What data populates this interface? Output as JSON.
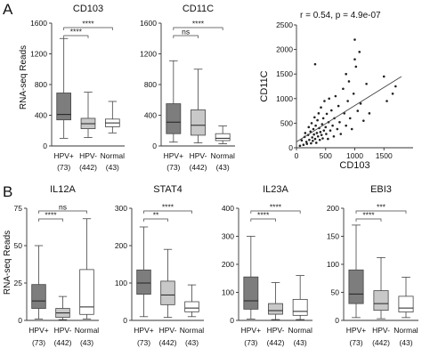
{
  "figure": {
    "panel_labels": [
      "A",
      "B"
    ],
    "ylabel": "RNA-seq Reads",
    "groups": [
      {
        "label": "HPV+",
        "n": "(73)",
        "fill": "#7d7d7d"
      },
      {
        "label": "HPV-",
        "n": "(442)",
        "fill": "#c8c8c8"
      },
      {
        "label": "Normal",
        "n": "(43)",
        "fill": "#ffffff"
      }
    ]
  },
  "chart_data": [
    {
      "id": "cd103",
      "type": "box",
      "title": "CD103",
      "ylim": [
        0,
        1600
      ],
      "yticks": [
        0,
        400,
        800,
        1200,
        1600
      ],
      "boxes": [
        {
          "min": 100,
          "q1": 340,
          "median": 410,
          "q3": 690,
          "max": 1400
        },
        {
          "min": 110,
          "q1": 225,
          "median": 290,
          "q3": 360,
          "max": 700
        },
        {
          "min": 170,
          "q1": 250,
          "median": 300,
          "q3": 350,
          "max": 580
        }
      ],
      "comparisons": [
        {
          "from": 0,
          "to": 1,
          "label": "****"
        },
        {
          "from": 0,
          "to": 2,
          "label": "****"
        }
      ]
    },
    {
      "id": "cd11c",
      "type": "box",
      "title": "CD11C",
      "ylim": [
        0,
        1600
      ],
      "yticks": [
        0,
        400,
        800,
        1200,
        1600
      ],
      "boxes": [
        {
          "min": 50,
          "q1": 160,
          "median": 310,
          "q3": 550,
          "max": 1110
        },
        {
          "min": 40,
          "q1": 140,
          "median": 270,
          "q3": 470,
          "max": 1000
        },
        {
          "min": 30,
          "q1": 70,
          "median": 100,
          "q3": 160,
          "max": 260
        }
      ],
      "comparisons": [
        {
          "from": 0,
          "to": 1,
          "label": "ns"
        },
        {
          "from": 0,
          "to": 2,
          "label": "****"
        }
      ]
    },
    {
      "id": "scatter",
      "type": "scatter",
      "annotation": "r = 0.54, p = 4.9e-07",
      "xlabel": "CD103",
      "ylabel": "CD11C",
      "xlim": [
        0,
        2000
      ],
      "ylim": [
        0,
        2500
      ],
      "xticks": [
        0,
        500,
        1000,
        1500
      ],
      "yticks": [
        0,
        500,
        1000,
        1500,
        2000,
        2500
      ],
      "trend": {
        "x": [
          0,
          1800
        ],
        "y": [
          120,
          1450
        ]
      },
      "points": [
        [
          60,
          40
        ],
        [
          90,
          150
        ],
        [
          120,
          60
        ],
        [
          140,
          220
        ],
        [
          150,
          300
        ],
        [
          170,
          120
        ],
        [
          180,
          80
        ],
        [
          200,
          260
        ],
        [
          210,
          420
        ],
        [
          220,
          160
        ],
        [
          240,
          330
        ],
        [
          250,
          90
        ],
        [
          260,
          500
        ],
        [
          270,
          210
        ],
        [
          280,
          140
        ],
        [
          290,
          380
        ],
        [
          300,
          270
        ],
        [
          310,
          620
        ],
        [
          320,
          180
        ],
        [
          330,
          450
        ],
        [
          340,
          100
        ],
        [
          350,
          300
        ],
        [
          360,
          560
        ],
        [
          370,
          230
        ],
        [
          380,
          700
        ],
        [
          390,
          400
        ],
        [
          400,
          160
        ],
        [
          410,
          320
        ],
        [
          420,
          820
        ],
        [
          430,
          260
        ],
        [
          440,
          480
        ],
        [
          450,
          190
        ],
        [
          460,
          600
        ],
        [
          470,
          350
        ],
        [
          480,
          950
        ],
        [
          500,
          420
        ],
        [
          510,
          280
        ],
        [
          520,
          690
        ],
        [
          540,
          180
        ],
        [
          550,
          520
        ],
        [
          560,
          1000
        ],
        [
          580,
          350
        ],
        [
          600,
          760
        ],
        [
          620,
          450
        ],
        [
          640,
          230
        ],
        [
          650,
          600
        ],
        [
          670,
          1050
        ],
        [
          700,
          380
        ],
        [
          720,
          850
        ],
        [
          740,
          520
        ],
        [
          760,
          280
        ],
        [
          800,
          1200
        ],
        [
          820,
          700
        ],
        [
          850,
          450
        ],
        [
          880,
          950
        ],
        [
          900,
          1350
        ],
        [
          920,
          600
        ],
        [
          950,
          380
        ],
        [
          980,
          1100
        ],
        [
          1000,
          2200
        ],
        [
          1020,
          1650
        ],
        [
          1050,
          750
        ],
        [
          1080,
          1950
        ],
        [
          1100,
          900
        ],
        [
          1150,
          550
        ],
        [
          1200,
          1300
        ],
        [
          1250,
          700
        ],
        [
          1500,
          1450
        ],
        [
          1550,
          950
        ],
        [
          1650,
          1100
        ],
        [
          1700,
          1250
        ],
        [
          1000,
          1800
        ],
        [
          850,
          1500
        ],
        [
          320,
          1700
        ]
      ]
    },
    {
      "id": "il12a",
      "type": "box",
      "title": "IL12A",
      "ylim": [
        0,
        75
      ],
      "yticks": [
        0,
        25,
        50,
        75
      ],
      "boxes": [
        {
          "min": 1,
          "q1": 8,
          "median": 13,
          "q3": 24,
          "max": 50
        },
        {
          "min": 0.5,
          "q1": 2,
          "median": 5,
          "q3": 8,
          "max": 16
        },
        {
          "min": 1,
          "q1": 4,
          "median": 9,
          "q3": 34,
          "max": 68
        }
      ],
      "comparisons": [
        {
          "from": 0,
          "to": 1,
          "label": "****"
        },
        {
          "from": 0,
          "to": 2,
          "label": "ns"
        }
      ]
    },
    {
      "id": "stat4",
      "type": "box",
      "title": "STAT4",
      "ylim": [
        0,
        300
      ],
      "yticks": [
        0,
        100,
        200,
        300
      ],
      "boxes": [
        {
          "min": 10,
          "q1": 70,
          "median": 100,
          "q3": 135,
          "max": 250
        },
        {
          "min": 8,
          "q1": 42,
          "median": 68,
          "q3": 105,
          "max": 190
        },
        {
          "min": 10,
          "q1": 23,
          "median": 33,
          "q3": 50,
          "max": 95
        }
      ],
      "comparisons": [
        {
          "from": 0,
          "to": 1,
          "label": "**"
        },
        {
          "from": 0,
          "to": 2,
          "label": "****"
        }
      ]
    },
    {
      "id": "il23a",
      "type": "box",
      "title": "IL23A",
      "ylim": [
        0,
        400
      ],
      "yticks": [
        0,
        100,
        200,
        300,
        400
      ],
      "boxes": [
        {
          "min": 5,
          "q1": 40,
          "median": 70,
          "q3": 155,
          "max": 300
        },
        {
          "min": 3,
          "q1": 22,
          "median": 35,
          "q3": 60,
          "max": 135
        },
        {
          "min": 3,
          "q1": 18,
          "median": 32,
          "q3": 75,
          "max": 160
        }
      ],
      "comparisons": [
        {
          "from": 0,
          "to": 1,
          "label": "****"
        },
        {
          "from": 0,
          "to": 2,
          "label": "****"
        }
      ]
    },
    {
      "id": "ebi3",
      "type": "box",
      "title": "EBI3",
      "ylim": [
        0,
        200
      ],
      "yticks": [
        0,
        50,
        100,
        150,
        200
      ],
      "boxes": [
        {
          "min": 5,
          "q1": 30,
          "median": 47,
          "q3": 90,
          "max": 170
        },
        {
          "min": 3,
          "q1": 18,
          "median": 30,
          "q3": 53,
          "max": 112
        },
        {
          "min": 5,
          "q1": 15,
          "median": 22,
          "q3": 43,
          "max": 77
        }
      ],
      "comparisons": [
        {
          "from": 0,
          "to": 1,
          "label": "****"
        },
        {
          "from": 0,
          "to": 2,
          "label": "***"
        }
      ]
    }
  ]
}
